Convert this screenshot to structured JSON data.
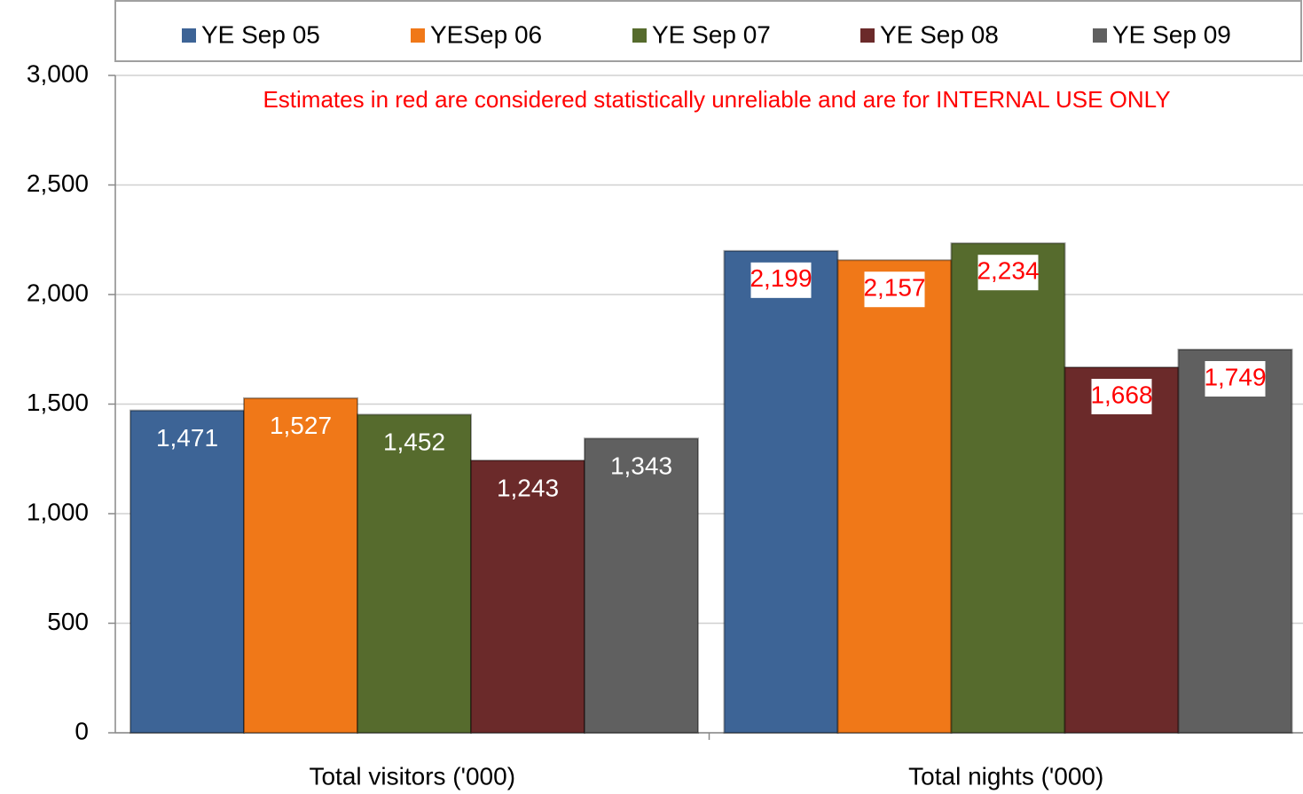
{
  "chart_data": {
    "type": "bar",
    "annotation": "Estimates in red are considered statistically unreliable and are for INTERNAL USE ONLY",
    "categories": [
      "Total visitors ('000)",
      "Total nights ('000)"
    ],
    "series": [
      {
        "name": "YE Sep 05",
        "color": "#3d6496",
        "values": [
          1471,
          2199
        ],
        "value_labels": [
          "1,471",
          "2,199"
        ]
      },
      {
        "name": "YESep 06",
        "color": "#f07818",
        "values": [
          1527,
          2157
        ],
        "value_labels": [
          "1,527",
          "2,157"
        ]
      },
      {
        "name": "YE Sep 07",
        "color": "#566b2d",
        "values": [
          1452,
          2234
        ],
        "value_labels": [
          "1,452",
          "2,234"
        ]
      },
      {
        "name": "YE Sep 08",
        "color": "#6b2a2a",
        "values": [
          1243,
          1668
        ],
        "value_labels": [
          "1,243",
          "1,668"
        ]
      },
      {
        "name": "YE Sep 09",
        "color": "#606060",
        "values": [
          1343,
          1749
        ],
        "value_labels": [
          "1,343",
          "1,749"
        ]
      }
    ],
    "ylim": [
      0,
      3000
    ],
    "yticks": [
      0,
      500,
      {
        "value": 1000,
        "label": "1,000"
      },
      {
        "value": 1500,
        "label": "1,500"
      },
      {
        "value": 2000,
        "label": "2,000"
      },
      {
        "value": 2500,
        "label": "2,500"
      },
      {
        "value": 3000,
        "label": "3,000"
      }
    ],
    "grid": true,
    "legend": "top"
  }
}
